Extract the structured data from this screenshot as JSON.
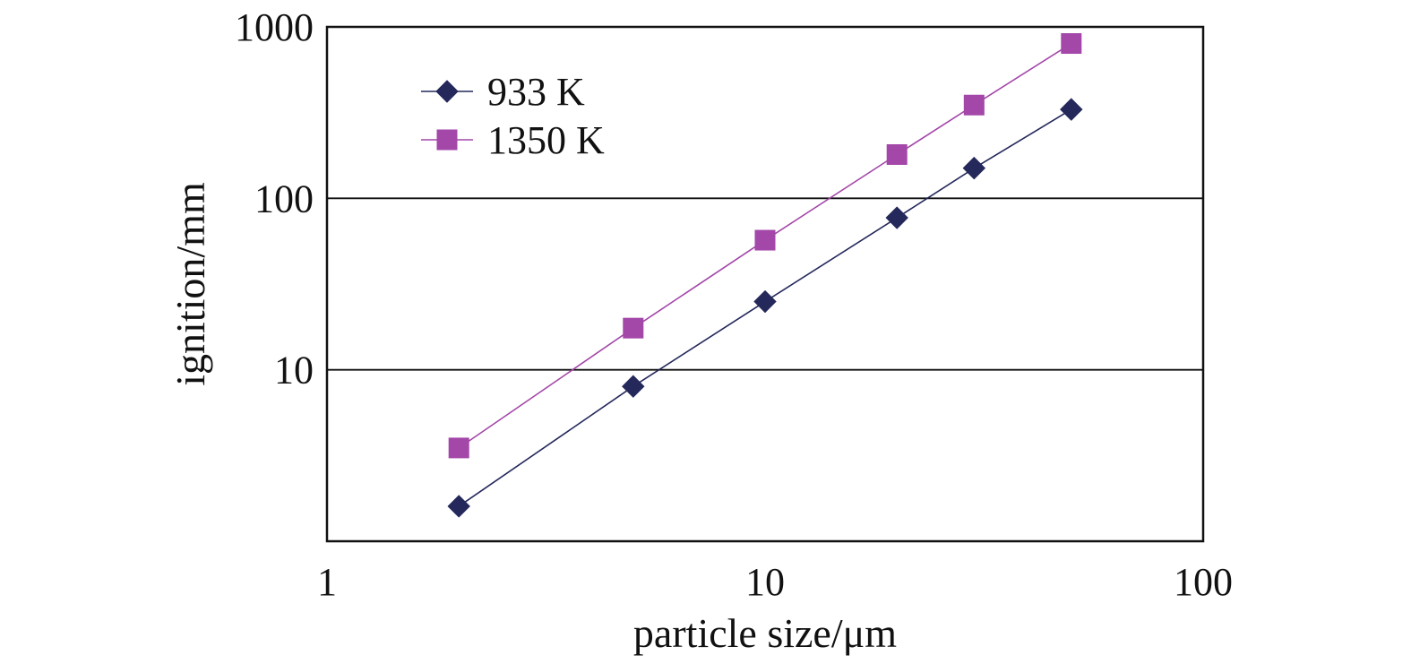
{
  "chart_data": {
    "type": "line",
    "xlabel": "particle size/μm",
    "ylabel": "ignition/mm",
    "x_scale": "log",
    "y_scale": "log",
    "xlim": [
      1,
      100
    ],
    "ylim": [
      1,
      1000
    ],
    "x_ticks": [
      "1",
      "10",
      "100"
    ],
    "y_ticks": [
      "10",
      "100",
      "1000"
    ],
    "y_tick_values": [
      10,
      100,
      1000
    ],
    "x_tick_values": [
      1,
      10,
      100
    ],
    "grid": "horizontal major lines",
    "legend_position": "top-left",
    "x": [
      2,
      5,
      10,
      20,
      30,
      50
    ],
    "series": [
      {
        "name": "933 K",
        "marker": "diamond",
        "color": "#24285a",
        "values": [
          1.6,
          8,
          25,
          77,
          150,
          330
        ]
      },
      {
        "name": "1350 K",
        "marker": "square",
        "color": "#a347a8",
        "values": [
          3.5,
          17.5,
          57,
          180,
          350,
          800
        ]
      }
    ]
  }
}
